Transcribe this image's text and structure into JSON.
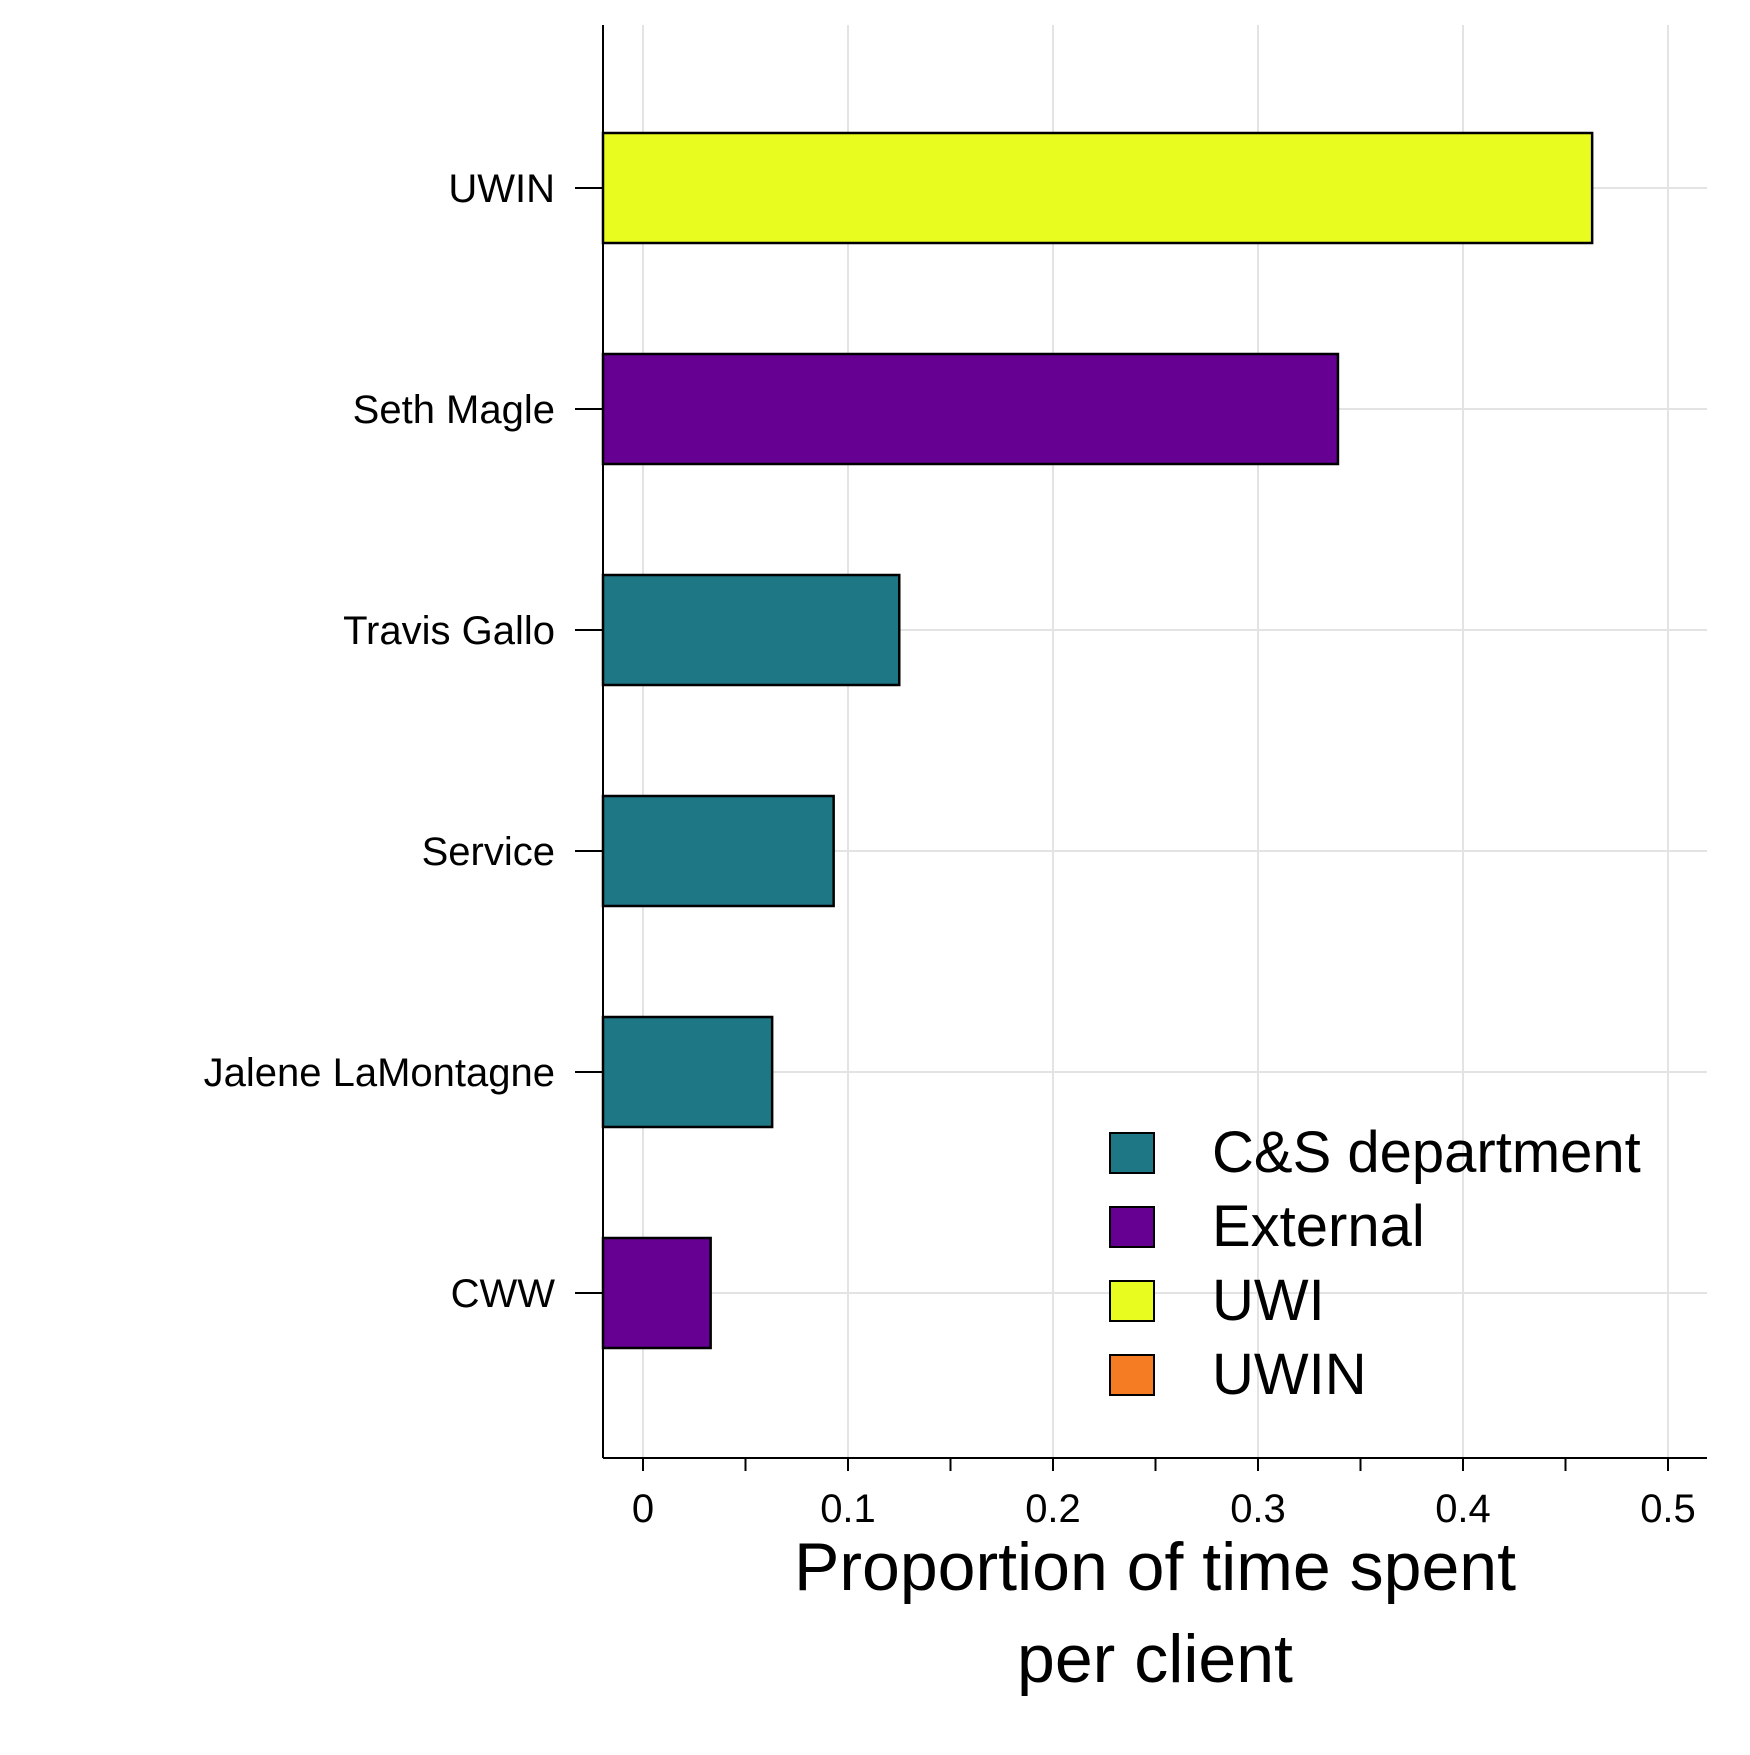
{
  "chart_data": {
    "type": "bar",
    "orientation": "horizontal",
    "title": "",
    "ylabel": "",
    "xlabel_lines": [
      "Proportion of time spent",
      "per client"
    ],
    "categories": [
      "UWIN",
      "Seth Magle",
      "Travis Gallo",
      "Service",
      "Jalene LaMontagne",
      "CWW"
    ],
    "values": [
      0.463,
      0.339,
      0.125,
      0.093,
      0.063,
      0.033
    ],
    "bar_groups": [
      "UWI",
      "External",
      "C&S department",
      "C&S department",
      "C&S department",
      "External"
    ],
    "xlim": [
      0,
      0.5
    ],
    "xticks": [
      0,
      0.1,
      0.2,
      0.3,
      0.4,
      0.5
    ],
    "xtick_labels": [
      "0",
      "0.1",
      "0.2",
      "0.3",
      "0.4",
      "0.5"
    ],
    "grid": true,
    "legend": {
      "placement": "bottom-right",
      "entries": [
        {
          "name": "C&S department",
          "color": "#1d7785"
        },
        {
          "name": "External",
          "color": "#650092"
        },
        {
          "name": "UWI",
          "color": "#e8fc20"
        },
        {
          "name": "UWIN",
          "color": "#f57c22"
        }
      ]
    }
  }
}
